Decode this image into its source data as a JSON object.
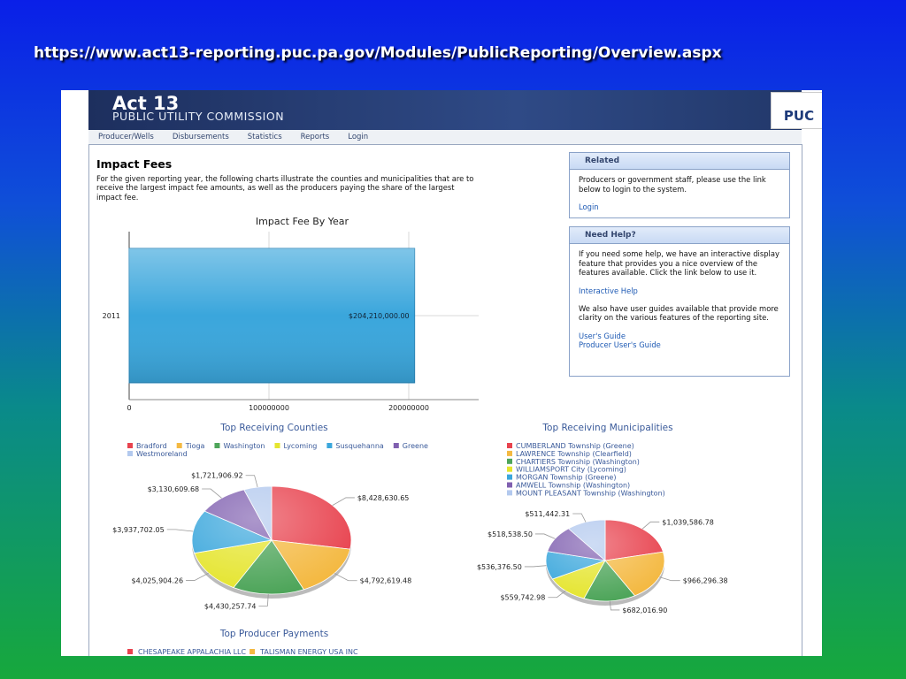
{
  "slide_title": "https://www.act13-reporting.puc.pa.gov/Modules/PublicReporting/Overview.aspx",
  "header": {
    "title": "Act 13",
    "subtitle": "PUBLIC UTILITY COMMISSION",
    "logo": "PUC"
  },
  "nav": [
    "Producer/Wells",
    "Disbursements",
    "Statistics",
    "Reports",
    "Login"
  ],
  "main": {
    "heading": "Impact Fees",
    "intro": "For the given reporting year, the following charts illustrate the counties and municipalities that are to receive the largest impact fee amounts, as well as the producers paying the share of the largest impact fee."
  },
  "sidebar": {
    "related": {
      "title": "Related",
      "text": "Producers or government staff, please use the link below to login to the system.",
      "link": "Login"
    },
    "help": {
      "title": "Need Help?",
      "text1": "If you need some help, we have an interactive display feature that provides you a nice overview of the features available. Click the link below to use it.",
      "link1": "Interactive Help",
      "text2": "We also have user guides available that provide more clarity on the various features of the reporting site.",
      "links2": [
        "User's Guide",
        "Producer User's Guide"
      ]
    }
  },
  "chart_data": [
    {
      "type": "bar",
      "orientation": "horizontal",
      "title": "Impact Fee By Year",
      "categories": [
        "2011"
      ],
      "values": [
        204210000
      ],
      "value_labels": [
        "$204,210,000.00"
      ],
      "color": "#3aa6dc",
      "xlim": [
        0,
        250000000
      ],
      "xticks": [
        0,
        100000000,
        200000000
      ],
      "grid": true
    },
    {
      "type": "pie",
      "title": "Top Receiving Counties",
      "categories": [
        "Bradford",
        "Tioga",
        "Washington",
        "Lycoming",
        "Susquehanna",
        "Greene",
        "Westmoreland"
      ],
      "values": [
        8428630.65,
        4792619.48,
        4430257.74,
        4025904.26,
        3937702.05,
        3130609.68,
        1721906.92
      ],
      "value_labels": [
        "$8,428,630.65",
        "$4,792,619.48",
        "$4,430,257.74",
        "$4,025,904.26",
        "$3,937,702.05",
        "$3,130,609.68",
        "$1,721,906.92"
      ],
      "colors": [
        "#e8434f",
        "#f4b942",
        "#4ea55a",
        "#e5e52f",
        "#3ba7dc",
        "#8060b0",
        "#b3c9ee"
      ]
    },
    {
      "type": "pie",
      "title": "Top Receiving Municipalities",
      "categories": [
        "CUMBERLAND Township (Greene)",
        "LAWRENCE Township (Clearfield)",
        "CHARTIERS Township (Washington)",
        "WILLIAMSPORT City (Lycoming)",
        "MORGAN Township (Greene)",
        "AMWELL Township (Washington)",
        "MOUNT PLEASANT Township (Washington)"
      ],
      "values": [
        1039586.78,
        966296.38,
        682016.9,
        559742.98,
        536376.5,
        518538.5,
        511442.31
      ],
      "value_labels": [
        "$1,039,586.78",
        "$966,296.38",
        "$682,016.90",
        "$559,742.98",
        "$536,376.50",
        "$518,538.50",
        "$511,442.31"
      ],
      "colors": [
        "#e8434f",
        "#f4b942",
        "#4ea55a",
        "#e5e52f",
        "#3ba7dc",
        "#8060b0",
        "#b3c9ee"
      ]
    }
  ],
  "producer_payments": {
    "title": "Top Producer Payments",
    "legend": [
      {
        "name": "CHESAPEAKE APPALACHIA LLC",
        "color": "#e8434f"
      },
      {
        "name": "TALISMAN ENERGY USA INC",
        "color": "#f4b942"
      }
    ]
  }
}
